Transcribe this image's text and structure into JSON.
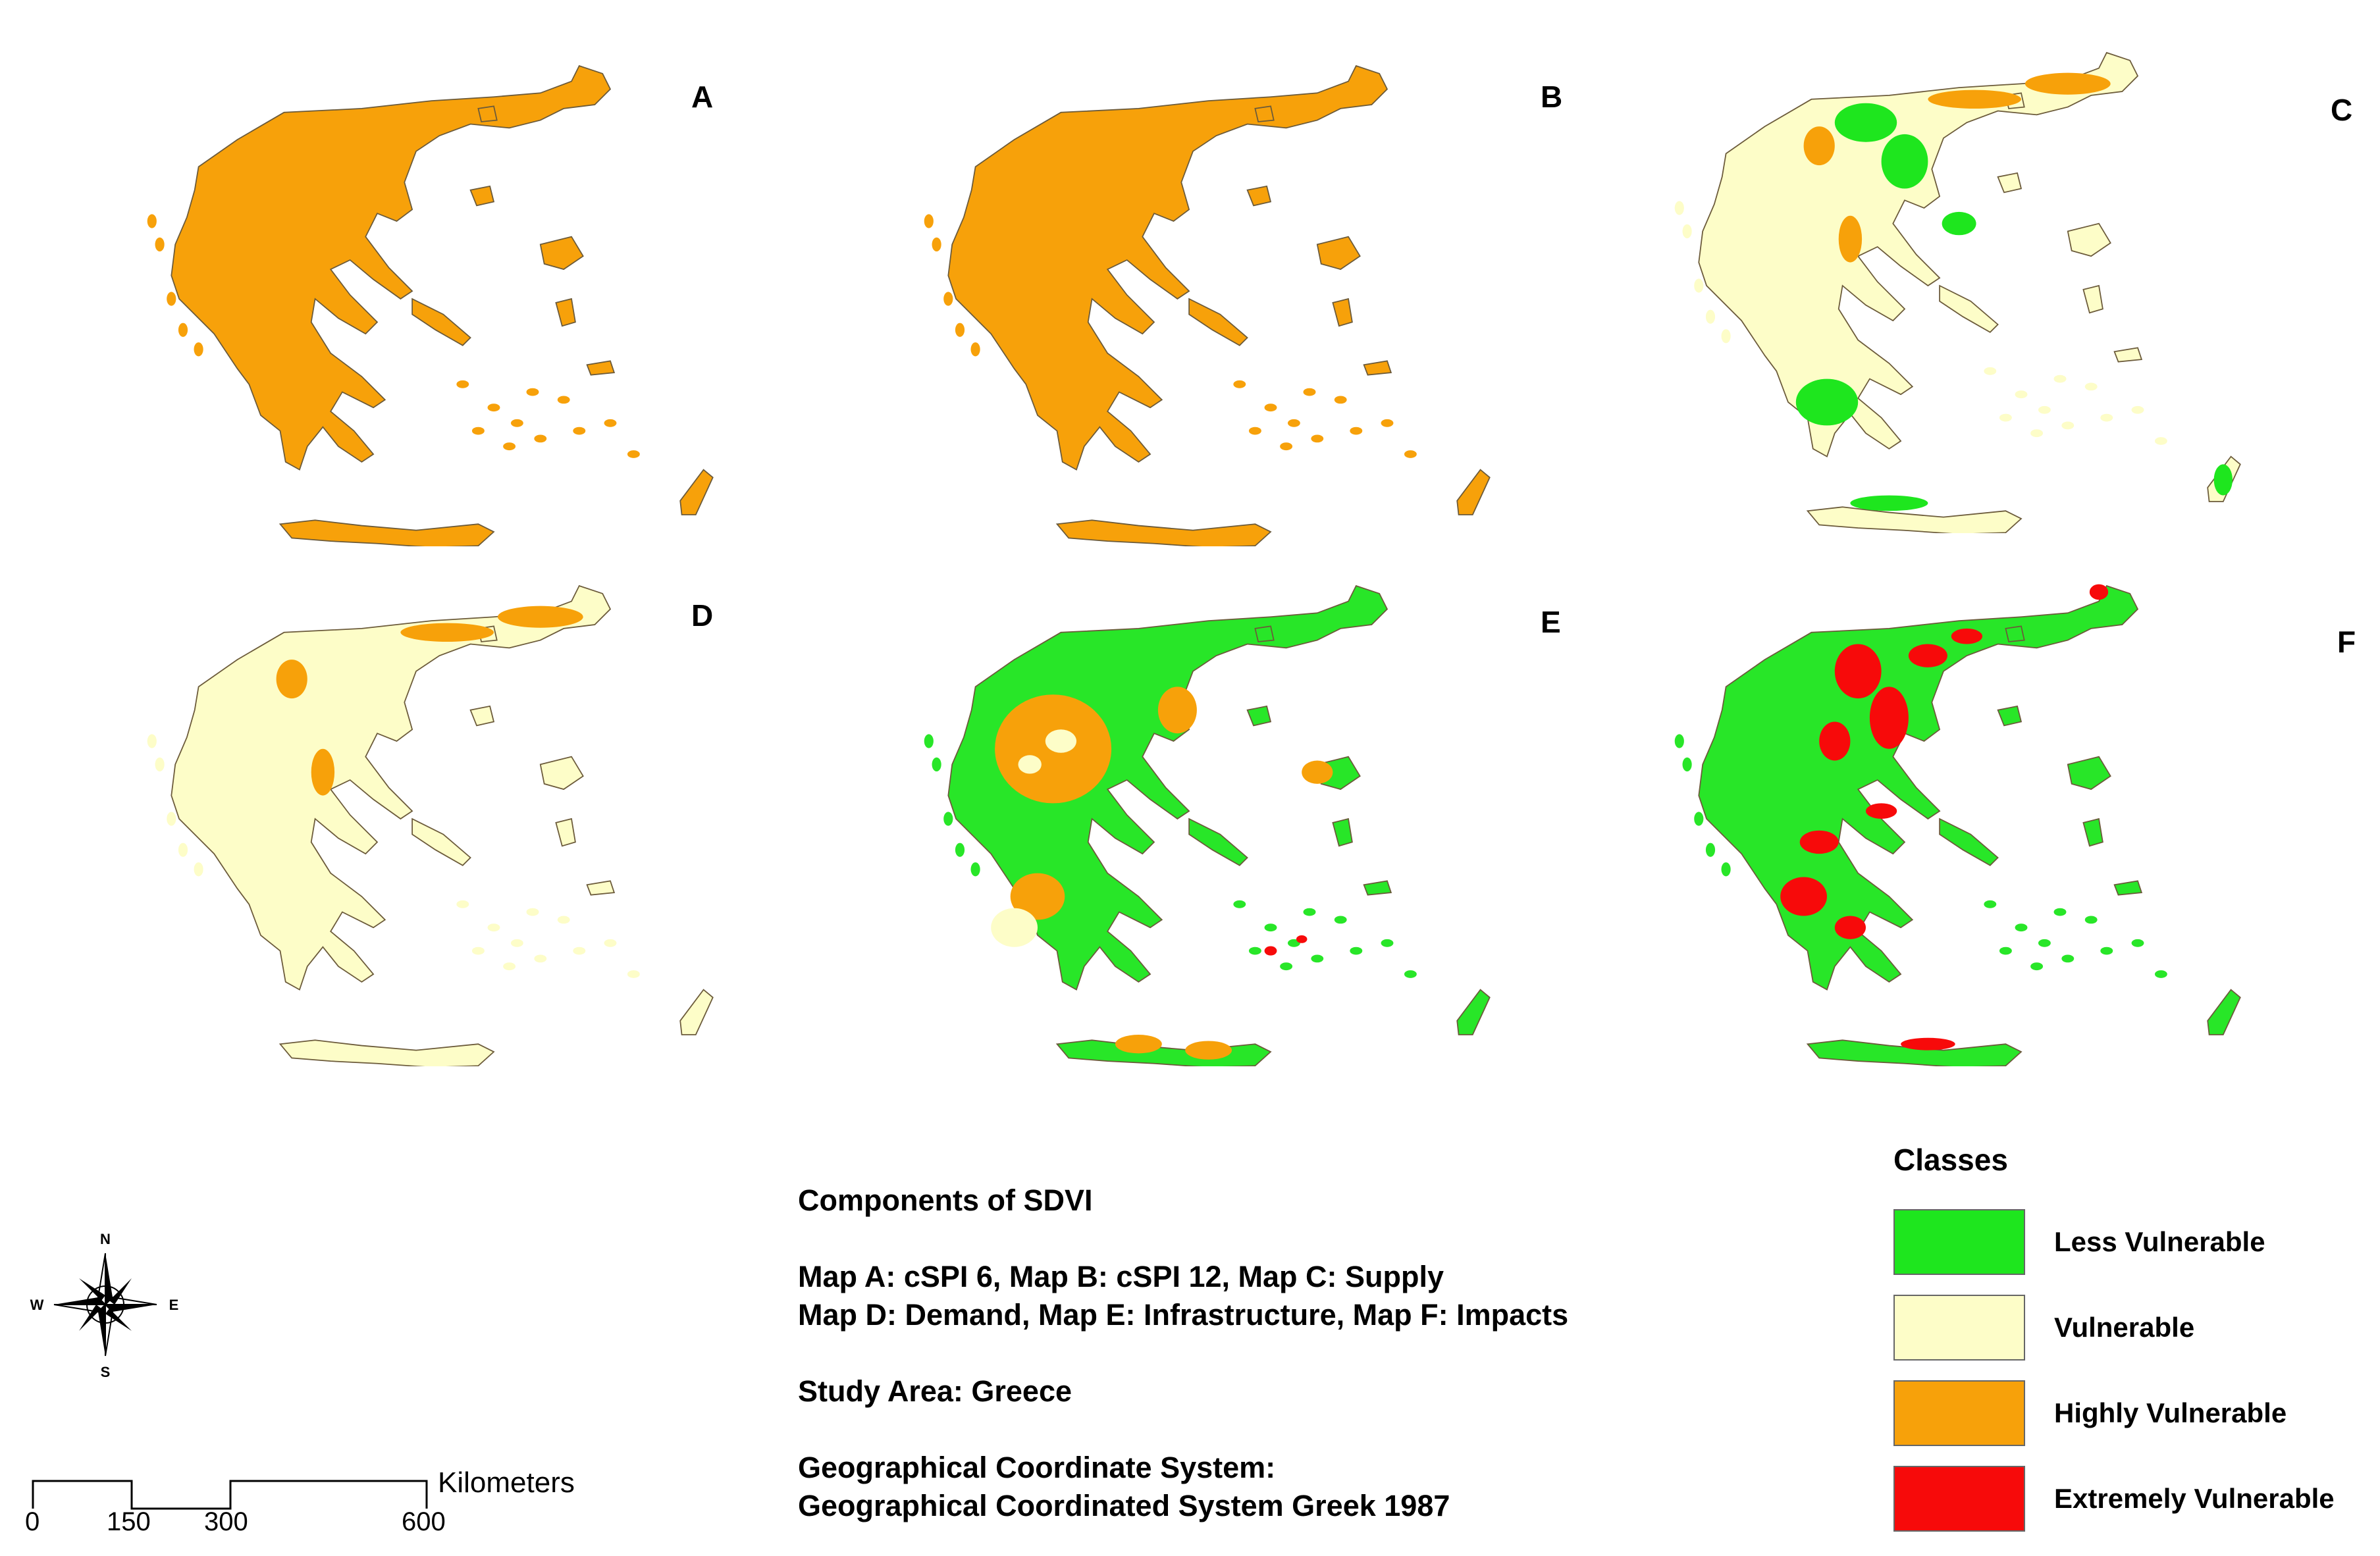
{
  "panels": [
    {
      "letter": "A",
      "fill": "#f7a10a",
      "overlays": []
    },
    {
      "letter": "B",
      "fill": "#f7a10a",
      "overlays": []
    },
    {
      "letter": "C",
      "fill": "#fdfdc8",
      "overlays": [
        "green",
        "orange-ne"
      ]
    },
    {
      "letter": "D",
      "fill": "#fdfdc8",
      "overlays": [
        "orange-ne"
      ]
    },
    {
      "letter": "E",
      "fill": "#28e628",
      "overlays": [
        "orange-centre"
      ]
    },
    {
      "letter": "F",
      "fill": "#28e628",
      "overlays": [
        "red"
      ]
    }
  ],
  "info": {
    "heading": "Components of SDVI",
    "maps_line1": "Map A: cSPI 6, Map B: cSPI 12, Map C: Supply",
    "maps_line2": "Map D: Demand, Map E: Infrastructure, Map F: Impacts",
    "study_area": "Study Area: Greece",
    "crs_label": "Geographical Coordinate System:",
    "crs_value": "Geographical Coordinated System Greek 1987"
  },
  "legend": {
    "title": "Classes",
    "items": [
      {
        "label": "Less Vulnerable",
        "color": "#1ee61e"
      },
      {
        "label": "Vulnerable",
        "color": "#fdfdc8"
      },
      {
        "label": "Highly Vulnerable",
        "color": "#f7a10a"
      },
      {
        "label": "Extremely Vulnerable",
        "color": "#f70a0a"
      }
    ]
  },
  "compass": {
    "n": "N",
    "s": "S",
    "e": "E",
    "w": "W"
  },
  "scale": {
    "ticks": [
      "0",
      "150",
      "300",
      "600"
    ],
    "unit": "Kilometers"
  },
  "colors": {
    "less": "#1ee61e",
    "vulnerable": "#fdfdc8",
    "highly": "#f7a10a",
    "extremely": "#f70a0a",
    "outline": "#6b5a3a"
  }
}
